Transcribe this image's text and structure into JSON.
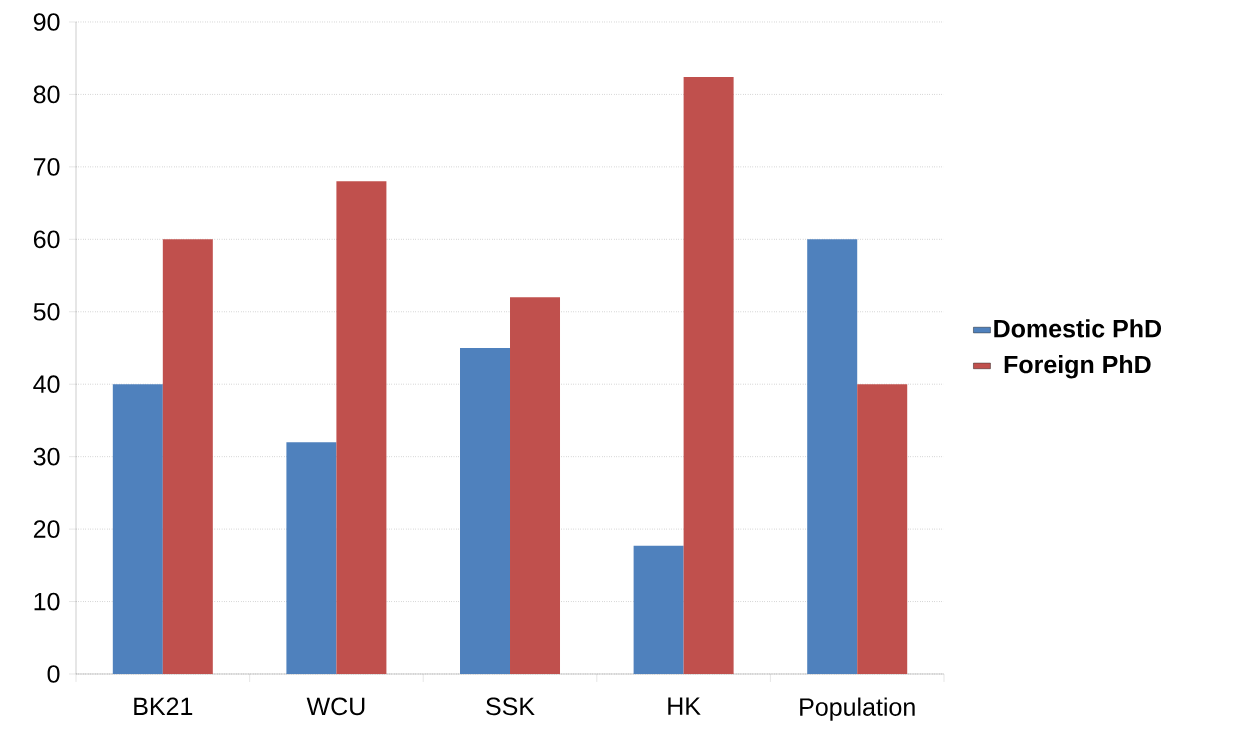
{
  "chart_data": {
    "type": "bar",
    "categories": [
      "BK21",
      "WCU",
      "SSK",
      "HK",
      "Population"
    ],
    "series": [
      {
        "name": "Domestic PhD",
        "color": "#4f81bd",
        "values": [
          40,
          32,
          45,
          17.7,
          60
        ]
      },
      {
        "name": "Foreign PhD",
        "color": "#c0504d",
        "values": [
          60,
          68,
          52,
          82.4,
          40
        ]
      }
    ],
    "ylim": [
      0,
      90
    ],
    "yticks": [
      0,
      10,
      20,
      30,
      40,
      50,
      60,
      70,
      80,
      90
    ],
    "grid": "y",
    "legend": "right"
  }
}
